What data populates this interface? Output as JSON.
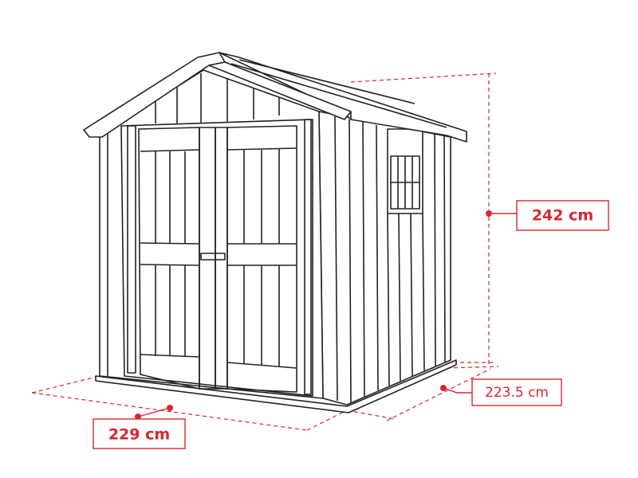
{
  "dimensions": {
    "height": "242 cm",
    "depth": "223.5 cm",
    "width": "229 cm"
  }
}
